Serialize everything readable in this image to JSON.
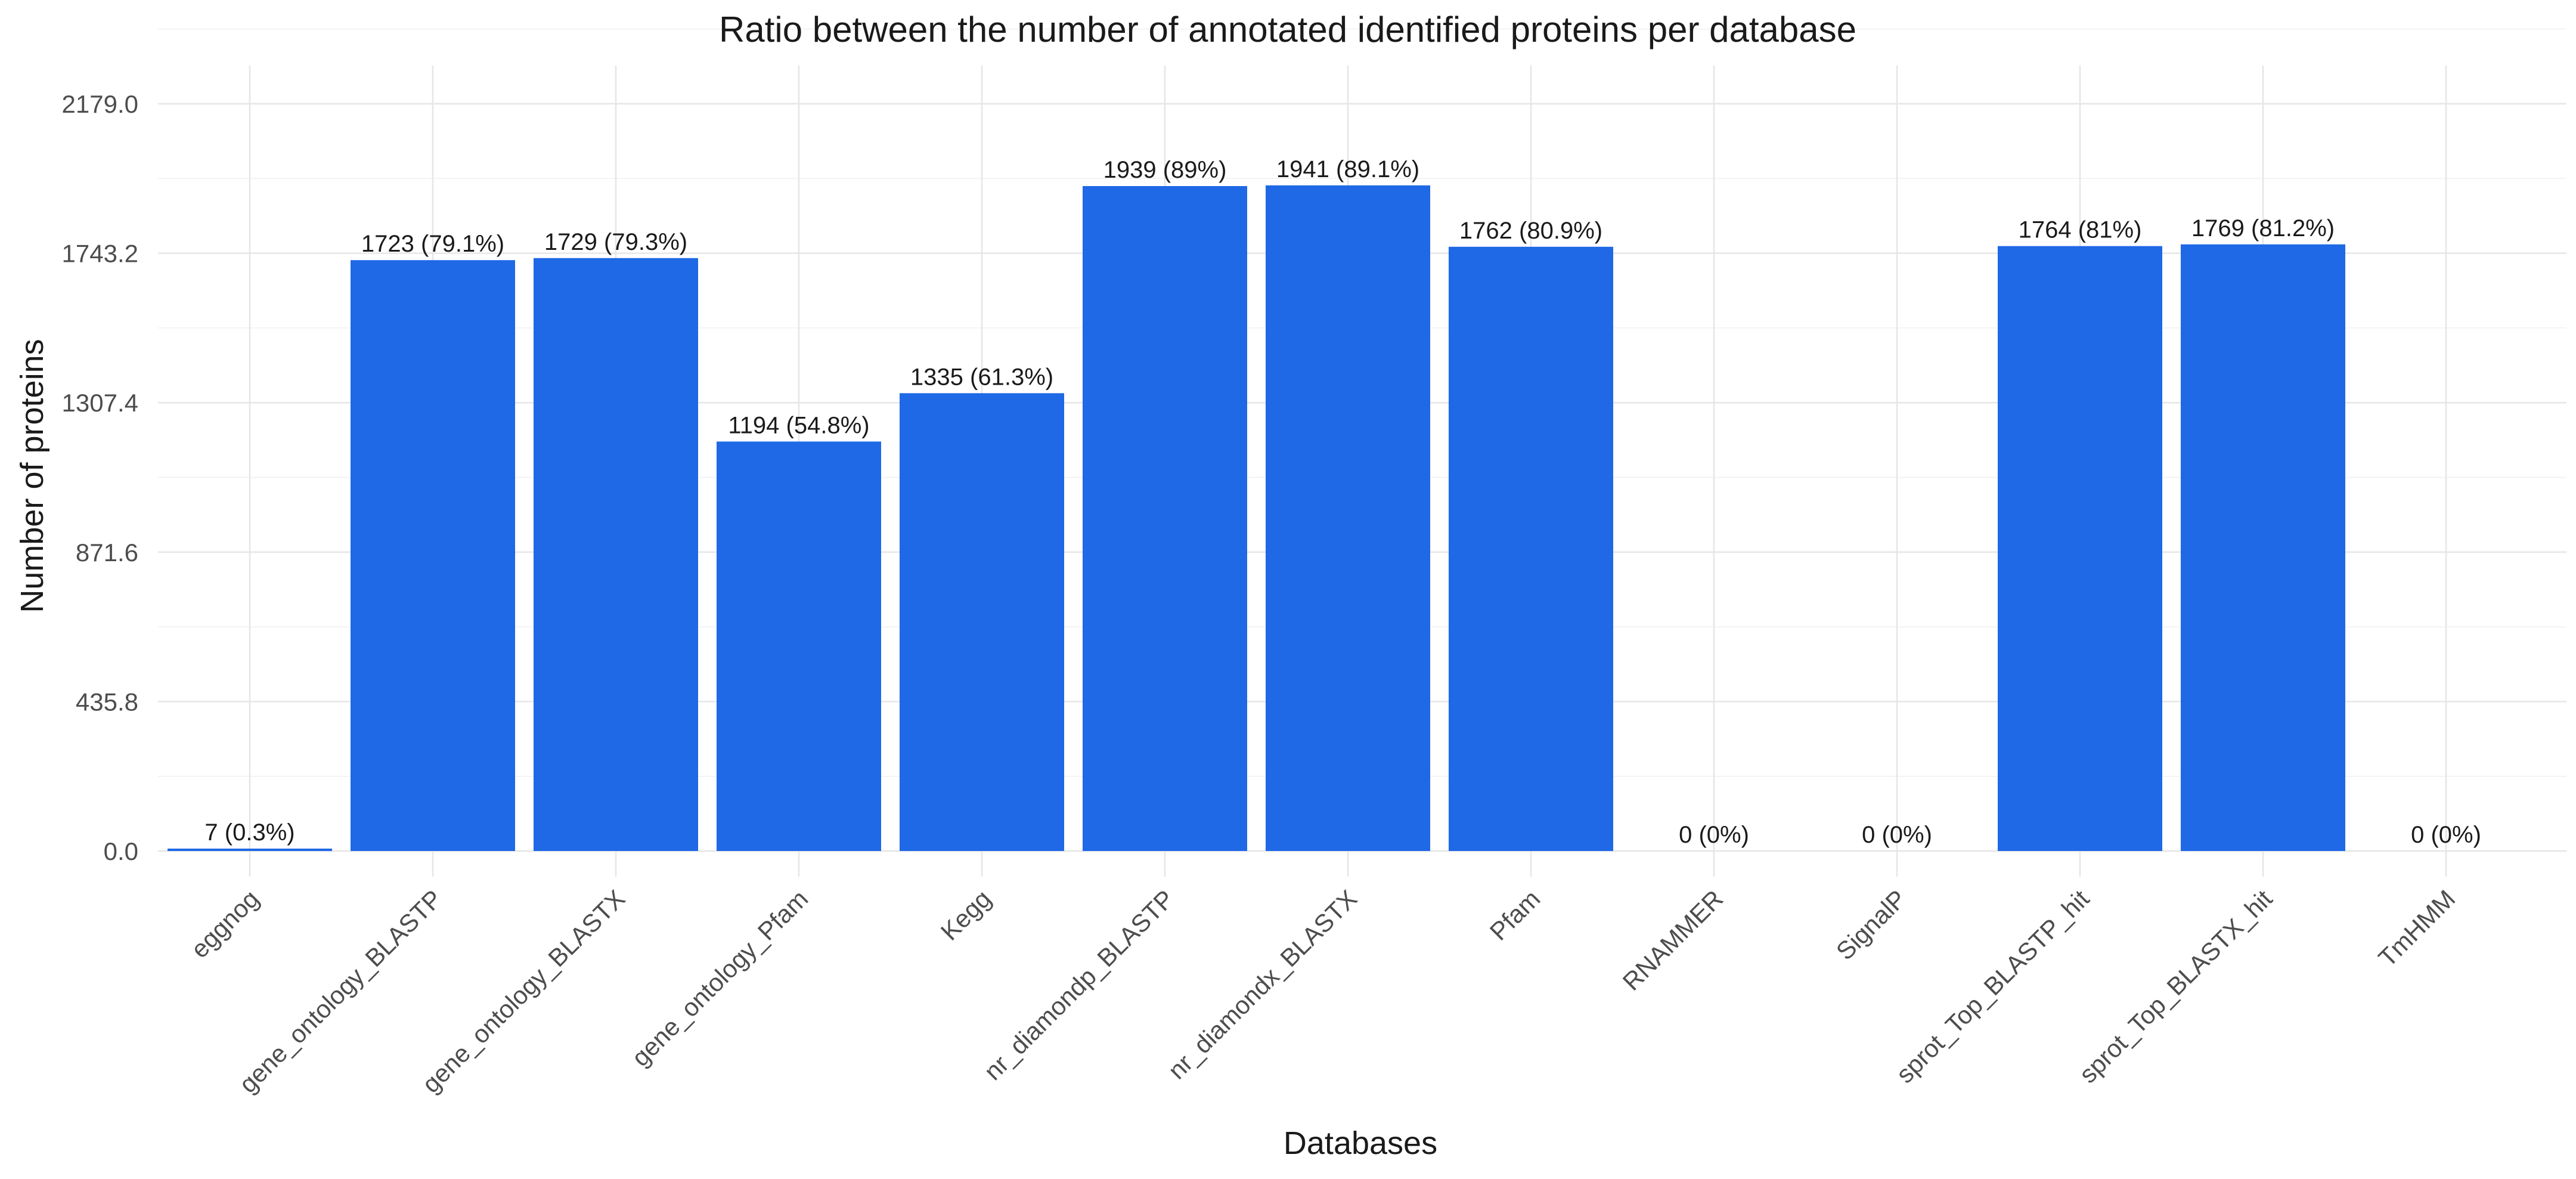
{
  "chart_data": {
    "type": "bar",
    "title": "Ratio between the number of annotated identified proteins per database",
    "xlabel": "Databases",
    "ylabel": "Number of proteins",
    "ylim": [
      0,
      2179.0
    ],
    "yticks": [
      "0.0",
      "435.8",
      "871.6",
      "1307.4",
      "1743.2",
      "2179.0"
    ],
    "ytick_values": [
      0,
      435.8,
      871.6,
      1307.4,
      1743.2,
      2179.0
    ],
    "categories": [
      "eggnog",
      "gene_ontology_BLASTP",
      "gene_ontology_BLASTX",
      "gene_ontology_Pfam",
      "Kegg",
      "nr_diamondp_BLASTP",
      "nr_diamondx_BLASTX",
      "Pfam",
      "RNAMMER",
      "SignalP",
      "sprot_Top_BLASTP_hit",
      "sprot_Top_BLASTX_hit",
      "TmHMM"
    ],
    "values": [
      7,
      1723,
      1729,
      1194,
      1335,
      1939,
      1941,
      1762,
      0,
      0,
      1764,
      1769,
      0
    ],
    "data_labels": [
      "7 (0.3%)",
      "1723 (79.1%)",
      "1729 (79.3%)",
      "1194 (54.8%)",
      "1335 (61.3%)",
      "1939 (89%)",
      "1941 (89.1%)",
      "1762 (80.9%)",
      "0 (0%)",
      "0 (0%)",
      "1764 (81%)",
      "1769 (81.2%)",
      "0 (0%)"
    ],
    "bar_color": "#1f68e6",
    "grid": true,
    "legend": "none"
  }
}
